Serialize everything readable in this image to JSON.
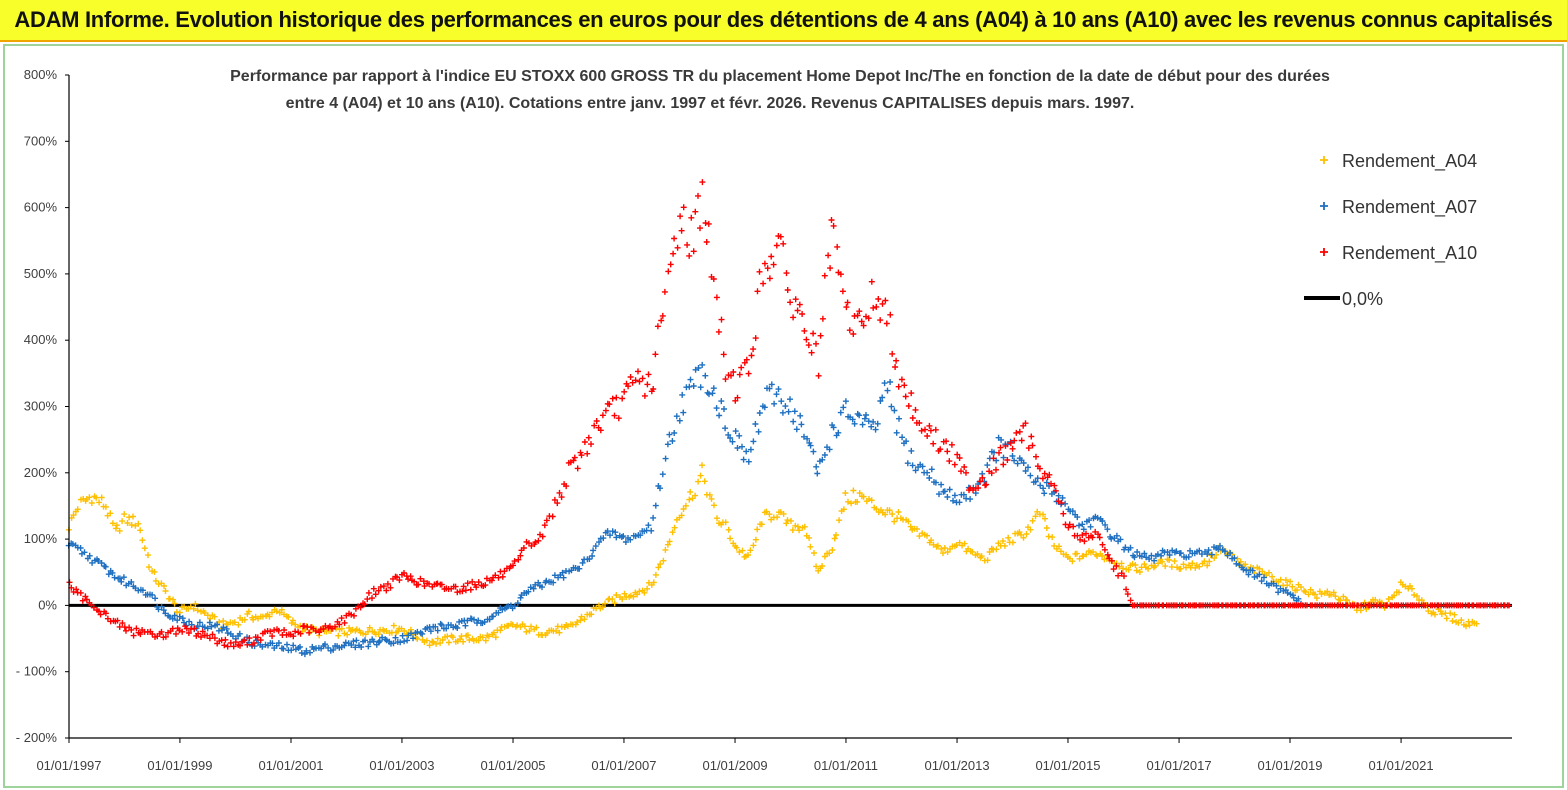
{
  "header": {
    "title": "ADAM Informe. Evolution historique des performances en euros pour des détentions de 4 ans (A04) à 10 ans (A10) avec les revenus connus capitalisés"
  },
  "colors": {
    "banner": "#f7fe2a",
    "frame_border": "#9ed49a",
    "A04": "#ffc000",
    "A07": "#1f70c1",
    "A10": "#ff0000",
    "zero_line": "#000000"
  },
  "chart_data": {
    "type": "scatter",
    "title_lines": [
      "Performance par rapport à l'indice EU STOXX 600 GROSS TR  du placement Home Depot Inc/The  en fonction de la date de début pour des durées",
      "entre 4 (A04) et 10 ans (A10).  Cotations entre janv. 1997 et févr. 2026. Revenus CAPITALISES depuis mars. 1997."
    ],
    "x_tick_labels": [
      "01/01/1997",
      "01/01/1999",
      "01/01/2001",
      "01/01/2003",
      "01/01/2005",
      "01/01/2007",
      "01/01/2009",
      "01/01/2011",
      "01/01/2013",
      "01/01/2015",
      "01/01/2017",
      "01/01/2019",
      "01/01/2021"
    ],
    "y_tick_labels": [
      "800%",
      "700%",
      "600%",
      "500%",
      "400%",
      "300%",
      "200%",
      "100%",
      "0%",
      "- 100%",
      "- 200%"
    ],
    "xlim": [
      "01/01/1997",
      "01/01/2023"
    ],
    "ylim": [
      -200,
      800
    ],
    "y_unit": "%",
    "grid": false,
    "legend_position": "top-right",
    "series": [
      {
        "name": "Rendement_A04",
        "marker": "plus",
        "points": [
          [
            "1997-01-01",
            120
          ],
          [
            "1997-03-01",
            150
          ],
          [
            "1997-06-01",
            165
          ],
          [
            "1997-09-01",
            150
          ],
          [
            "1997-11-01",
            110
          ],
          [
            "1998-01-01",
            130
          ],
          [
            "1998-04-01",
            125
          ],
          [
            "1998-07-01",
            50
          ],
          [
            "1998-10-01",
            20
          ],
          [
            "1999-01-01",
            -10
          ],
          [
            "1999-04-01",
            0
          ],
          [
            "1999-07-01",
            -15
          ],
          [
            "1999-10-01",
            -30
          ],
          [
            "2000-01-01",
            -25
          ],
          [
            "2000-04-01",
            -15
          ],
          [
            "2000-07-01",
            -20
          ],
          [
            "2000-10-01",
            -5
          ],
          [
            "2001-01-01",
            -25
          ],
          [
            "2001-04-01",
            -35
          ],
          [
            "2001-07-01",
            -40
          ],
          [
            "2002-01-01",
            -40
          ],
          [
            "2002-07-01",
            -38
          ],
          [
            "2003-01-01",
            -35
          ],
          [
            "2003-04-01",
            -45
          ],
          [
            "2003-07-01",
            -55
          ],
          [
            "2004-01-01",
            -50
          ],
          [
            "2004-07-01",
            -50
          ],
          [
            "2005-01-01",
            -30
          ],
          [
            "2005-04-01",
            -35
          ],
          [
            "2005-07-01",
            -40
          ],
          [
            "2006-01-01",
            -35
          ],
          [
            "2006-04-01",
            -20
          ],
          [
            "2006-07-01",
            -5
          ],
          [
            "2006-10-01",
            5
          ],
          [
            "2007-01-01",
            15
          ],
          [
            "2007-04-01",
            20
          ],
          [
            "2007-07-01",
            30
          ],
          [
            "2007-10-01",
            80
          ],
          [
            "2008-01-01",
            140
          ],
          [
            "2008-04-01",
            170
          ],
          [
            "2008-06-01",
            200
          ],
          [
            "2008-09-01",
            130
          ],
          [
            "2008-11-01",
            120
          ],
          [
            "2009-01-01",
            90
          ],
          [
            "2009-04-01",
            70
          ],
          [
            "2009-07-01",
            130
          ],
          [
            "2009-10-01",
            140
          ],
          [
            "2010-01-01",
            120
          ],
          [
            "2010-04-01",
            120
          ],
          [
            "2010-07-01",
            50
          ],
          [
            "2010-10-01",
            90
          ],
          [
            "2011-01-01",
            160
          ],
          [
            "2011-04-01",
            165
          ],
          [
            "2011-07-01",
            150
          ],
          [
            "2011-10-01",
            140
          ],
          [
            "2012-01-01",
            130
          ],
          [
            "2012-04-01",
            110
          ],
          [
            "2012-07-01",
            100
          ],
          [
            "2012-10-01",
            80
          ],
          [
            "2013-01-01",
            95
          ],
          [
            "2013-04-01",
            80
          ],
          [
            "2013-07-01",
            70
          ],
          [
            "2013-10-01",
            90
          ],
          [
            "2014-01-01",
            100
          ],
          [
            "2014-04-01",
            110
          ],
          [
            "2014-07-01",
            140
          ],
          [
            "2014-10-01",
            90
          ],
          [
            "2015-01-01",
            70
          ],
          [
            "2015-04-01",
            75
          ],
          [
            "2015-07-01",
            80
          ],
          [
            "2015-10-01",
            70
          ],
          [
            "2016-01-01",
            60
          ],
          [
            "2016-04-01",
            55
          ],
          [
            "2016-07-01",
            60
          ],
          [
            "2016-10-01",
            65
          ],
          [
            "2017-01-01",
            60
          ],
          [
            "2017-04-01",
            60
          ],
          [
            "2017-07-01",
            65
          ],
          [
            "2017-10-01",
            85
          ],
          [
            "2018-01-01",
            70
          ],
          [
            "2018-04-01",
            55
          ],
          [
            "2018-07-01",
            50
          ],
          [
            "2018-10-01",
            40
          ],
          [
            "2019-01-01",
            30
          ],
          [
            "2019-04-01",
            25
          ],
          [
            "2019-07-01",
            15
          ],
          [
            "2019-10-01",
            20
          ],
          [
            "2020-01-01",
            5
          ],
          [
            "2020-04-01",
            -5
          ],
          [
            "2020-07-01",
            5
          ],
          [
            "2020-10-01",
            0
          ],
          [
            "2021-01-01",
            30
          ],
          [
            "2021-04-01",
            20
          ],
          [
            "2021-07-01",
            -5
          ],
          [
            "2021-10-01",
            -15
          ],
          [
            "2022-01-01",
            -20
          ],
          [
            "2022-03-01",
            -30
          ],
          [
            "2022-06-01",
            -20
          ]
        ]
      },
      {
        "name": "Rendement_A07",
        "marker": "plus",
        "points": [
          [
            "1997-01-01",
            90
          ],
          [
            "1997-03-01",
            85
          ],
          [
            "1997-06-01",
            70
          ],
          [
            "1997-09-01",
            55
          ],
          [
            "1997-12-01",
            40
          ],
          [
            "1998-03-01",
            30
          ],
          [
            "1998-06-01",
            20
          ],
          [
            "1998-09-01",
            -5
          ],
          [
            "1999-01-01",
            -20
          ],
          [
            "1999-04-01",
            -30
          ],
          [
            "1999-07-01",
            -30
          ],
          [
            "1999-10-01",
            -35
          ],
          [
            "2000-01-01",
            -45
          ],
          [
            "2000-04-01",
            -55
          ],
          [
            "2000-07-01",
            -60
          ],
          [
            "2000-10-01",
            -62
          ],
          [
            "2001-01-01",
            -65
          ],
          [
            "2001-04-01",
            -68
          ],
          [
            "2001-07-01",
            -65
          ],
          [
            "2001-10-01",
            -62
          ],
          [
            "2002-01-01",
            -60
          ],
          [
            "2002-07-01",
            -55
          ],
          [
            "2003-01-01",
            -50
          ],
          [
            "2003-04-01",
            -45
          ],
          [
            "2003-07-01",
            -35
          ],
          [
            "2004-01-01",
            -30
          ],
          [
            "2004-07-01",
            -20
          ],
          [
            "2005-01-01",
            0
          ],
          [
            "2005-04-01",
            20
          ],
          [
            "2005-07-01",
            30
          ],
          [
            "2006-01-01",
            50
          ],
          [
            "2006-04-01",
            60
          ],
          [
            "2006-07-01",
            90
          ],
          [
            "2006-10-01",
            110
          ],
          [
            "2007-01-01",
            100
          ],
          [
            "2007-04-01",
            105
          ],
          [
            "2007-07-01",
            120
          ],
          [
            "2007-10-01",
            220
          ],
          [
            "2008-01-01",
            300
          ],
          [
            "2008-04-01",
            330
          ],
          [
            "2008-06-01",
            360
          ],
          [
            "2008-09-01",
            310
          ],
          [
            "2008-11-01",
            280
          ],
          [
            "2009-01-01",
            250
          ],
          [
            "2009-04-01",
            220
          ],
          [
            "2009-07-01",
            300
          ],
          [
            "2009-10-01",
            320
          ],
          [
            "2010-01-01",
            300
          ],
          [
            "2010-04-01",
            260
          ],
          [
            "2010-07-01",
            200
          ],
          [
            "2010-10-01",
            260
          ],
          [
            "2011-01-01",
            290
          ],
          [
            "2011-04-01",
            280
          ],
          [
            "2011-07-01",
            260
          ],
          [
            "2011-10-01",
            330
          ],
          [
            "2012-01-01",
            250
          ],
          [
            "2012-04-01",
            210
          ],
          [
            "2012-07-01",
            200
          ],
          [
            "2012-10-01",
            170
          ],
          [
            "2013-01-01",
            160
          ],
          [
            "2013-04-01",
            170
          ],
          [
            "2013-07-01",
            200
          ],
          [
            "2013-10-01",
            240
          ],
          [
            "2014-01-01",
            230
          ],
          [
            "2014-04-01",
            200
          ],
          [
            "2014-07-01",
            180
          ],
          [
            "2014-10-01",
            170
          ],
          [
            "2015-01-01",
            150
          ],
          [
            "2015-04-01",
            120
          ],
          [
            "2015-07-01",
            130
          ],
          [
            "2015-10-01",
            110
          ],
          [
            "2016-01-01",
            90
          ],
          [
            "2016-04-01",
            75
          ],
          [
            "2016-07-01",
            70
          ],
          [
            "2016-10-01",
            80
          ],
          [
            "2017-01-01",
            75
          ],
          [
            "2017-04-01",
            80
          ],
          [
            "2017-07-01",
            75
          ],
          [
            "2017-10-01",
            90
          ],
          [
            "2018-01-01",
            70
          ],
          [
            "2018-04-01",
            50
          ],
          [
            "2018-07-01",
            40
          ],
          [
            "2018-10-01",
            25
          ],
          [
            "2019-01-01",
            15
          ],
          [
            "2019-04-01",
            5
          ]
        ]
      },
      {
        "name": "Rendement_A10",
        "marker": "plus",
        "points": [
          [
            "1997-01-01",
            30
          ],
          [
            "1997-03-01",
            15
          ],
          [
            "1997-06-01",
            5
          ],
          [
            "1997-09-01",
            -15
          ],
          [
            "1997-12-01",
            -30
          ],
          [
            "1998-03-01",
            -40
          ],
          [
            "1998-06-01",
            -40
          ],
          [
            "1998-09-01",
            -45
          ],
          [
            "1999-01-01",
            -35
          ],
          [
            "1999-04-01",
            -40
          ],
          [
            "1999-07-01",
            -45
          ],
          [
            "1999-10-01",
            -55
          ],
          [
            "2000-01-01",
            -60
          ],
          [
            "2000-04-01",
            -55
          ],
          [
            "2000-07-01",
            -45
          ],
          [
            "2000-10-01",
            -40
          ],
          [
            "2001-01-01",
            -45
          ],
          [
            "2001-04-01",
            -35
          ],
          [
            "2001-07-01",
            -40
          ],
          [
            "2001-10-01",
            -30
          ],
          [
            "2002-01-01",
            -20
          ],
          [
            "2002-04-01",
            0
          ],
          [
            "2002-07-01",
            20
          ],
          [
            "2002-10-01",
            30
          ],
          [
            "2003-01-01",
            45
          ],
          [
            "2003-07-01",
            30
          ],
          [
            "2004-01-01",
            25
          ],
          [
            "2004-07-01",
            35
          ],
          [
            "2005-01-01",
            55
          ],
          [
            "2005-04-01",
            90
          ],
          [
            "2005-07-01",
            100
          ],
          [
            "2005-10-01",
            150
          ],
          [
            "2006-01-01",
            200
          ],
          [
            "2006-04-01",
            230
          ],
          [
            "2006-07-01",
            270
          ],
          [
            "2006-10-01",
            290
          ],
          [
            "2007-01-01",
            310
          ],
          [
            "2007-04-01",
            340
          ],
          [
            "2007-07-01",
            330
          ],
          [
            "2007-10-01",
            460
          ],
          [
            "2008-01-01",
            590
          ],
          [
            "2008-04-01",
            550
          ],
          [
            "2008-06-01",
            630
          ],
          [
            "2008-09-01",
            450
          ],
          [
            "2008-11-01",
            360
          ],
          [
            "2009-01-01",
            330
          ],
          [
            "2009-04-01",
            360
          ],
          [
            "2009-07-01",
            500
          ],
          [
            "2009-10-01",
            550
          ],
          [
            "2010-01-01",
            470
          ],
          [
            "2010-04-01",
            420
          ],
          [
            "2010-07-01",
            370
          ],
          [
            "2010-10-01",
            560
          ],
          [
            "2011-01-01",
            440
          ],
          [
            "2011-04-01",
            420
          ],
          [
            "2011-07-01",
            470
          ],
          [
            "2011-10-01",
            430
          ],
          [
            "2012-01-01",
            340
          ],
          [
            "2012-04-01",
            290
          ],
          [
            "2012-07-01",
            260
          ],
          [
            "2012-10-01",
            240
          ],
          [
            "2013-01-01",
            220
          ],
          [
            "2013-04-01",
            180
          ],
          [
            "2013-07-01",
            190
          ],
          [
            "2013-10-01",
            220
          ],
          [
            "2014-01-01",
            240
          ],
          [
            "2014-04-01",
            260
          ],
          [
            "2014-07-01",
            210
          ],
          [
            "2014-10-01",
            180
          ],
          [
            "2015-01-01",
            120
          ],
          [
            "2015-04-01",
            100
          ],
          [
            "2015-07-01",
            110
          ],
          [
            "2015-10-01",
            70
          ],
          [
            "2016-01-01",
            40
          ],
          [
            "2016-03-01",
            0
          ],
          [
            "2016-07-01",
            0
          ],
          [
            "2017-01-01",
            0
          ],
          [
            "2018-01-01",
            0
          ],
          [
            "2019-01-01",
            0
          ],
          [
            "2020-01-01",
            0
          ],
          [
            "2021-01-01",
            0
          ],
          [
            "2022-01-01",
            0
          ],
          [
            "2022-12-31",
            0
          ]
        ]
      },
      {
        "name": "0,0%",
        "marker": "line",
        "points": [
          [
            "1997-01-01",
            0
          ],
          [
            "2023-01-01",
            0
          ]
        ]
      }
    ]
  }
}
